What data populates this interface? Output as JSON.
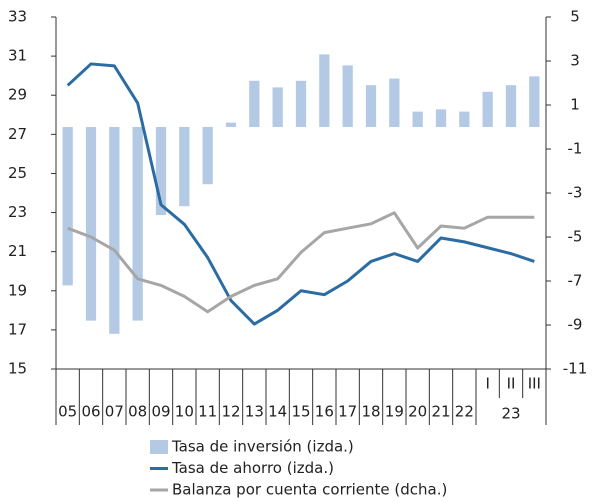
{
  "chart_data": {
    "type": "bar-line",
    "categories": [
      "05",
      "06",
      "07",
      "08",
      "09",
      "10",
      "11",
      "12",
      "13",
      "14",
      "15",
      "16",
      "17",
      "18",
      "19",
      "20",
      "21",
      "22",
      "I",
      "II",
      "III"
    ],
    "group_label": "23",
    "ylim": [
      15,
      33
    ],
    "yticks": [
      15,
      17,
      19,
      21,
      23,
      25,
      27,
      29,
      31,
      33
    ],
    "y2lim": [
      -11,
      5
    ],
    "y2ticks": [
      -11,
      -9,
      -7,
      -5,
      -3,
      -1,
      1,
      3,
      5
    ],
    "series": [
      {
        "name": "Tasa de inversión (izda.)",
        "type": "bar",
        "axis": "y2",
        "color": "#b4c9e4",
        "values": [
          -7.2,
          -8.8,
          -9.4,
          -8.8,
          -4.0,
          -3.6,
          -2.6,
          0.2,
          2.1,
          1.8,
          2.1,
          3.3,
          2.8,
          1.9,
          2.2,
          0.7,
          0.8,
          0.7,
          1.6,
          1.9,
          2.3
        ]
      },
      {
        "name": "Tasa de ahorro (izda.)",
        "type": "line",
        "axis": "y",
        "color": "#2b6ca3",
        "values": [
          29.5,
          30.6,
          30.5,
          28.6,
          23.4,
          22.4,
          20.7,
          18.5,
          17.3,
          18.0,
          19.0,
          18.8,
          19.5,
          20.5,
          20.9,
          20.5,
          21.7,
          21.5,
          21.2,
          20.9,
          20.5
        ]
      },
      {
        "name": "Balanza por cuenta corriente (dcha.)",
        "type": "line",
        "axis": "y2",
        "color": "#a6a6a6",
        "values": [
          -4.6,
          -5.0,
          -5.6,
          -6.9,
          -7.2,
          -7.7,
          -8.4,
          -7.7,
          -7.2,
          -6.9,
          -5.7,
          -4.8,
          -4.6,
          -4.4,
          -3.9,
          -5.5,
          -4.5,
          -4.6,
          -4.1,
          -4.1,
          -4.1
        ]
      }
    ]
  }
}
